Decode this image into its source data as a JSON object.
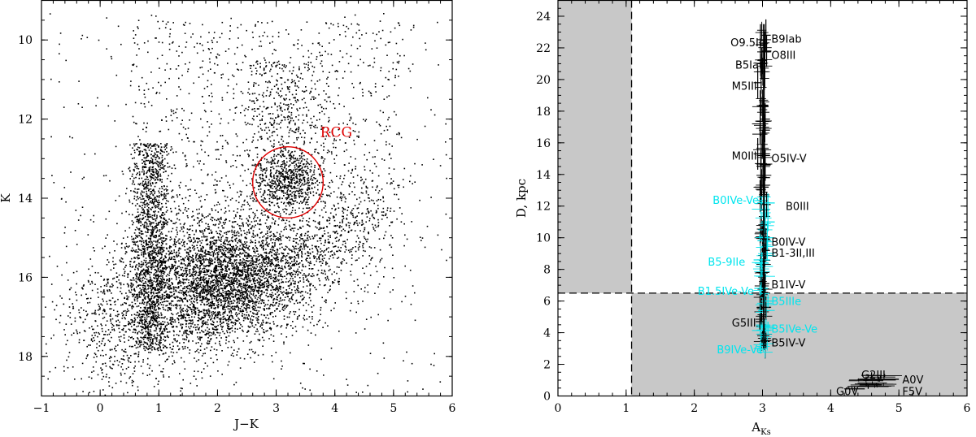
{
  "chart_data": [
    {
      "type": "scatter",
      "panel": "left",
      "xlabel": "J−K",
      "ylabel": "K",
      "xlim": [
        -1,
        6
      ],
      "ylim": [
        19,
        9
      ],
      "y_inverted": true,
      "xticks": [
        -1,
        0,
        1,
        2,
        3,
        4,
        5,
        6
      ],
      "yticks": [
        10,
        12,
        14,
        16,
        18
      ],
      "grid": false,
      "point_color": "#000000",
      "point_count_approx": 9000,
      "density_features": [
        {
          "x_range": [
            0.5,
            1.2
          ],
          "y_range": [
            12.5,
            17.5
          ],
          "description_level": "dense vertical band"
        },
        {
          "x_range": [
            1.2,
            3.5
          ],
          "y_range": [
            14.5,
            17.5
          ],
          "description_level": "dense main clump"
        },
        {
          "x_range": [
            2.8,
            3.6
          ],
          "y_range": [
            12.8,
            14.2
          ],
          "description_level": "red clump concentration"
        }
      ],
      "annotations": [
        {
          "text": "RCG",
          "color": "#e00000",
          "x": 3.75,
          "y": 12.45
        }
      ],
      "circle": {
        "cx": 3.2,
        "cy": 13.6,
        "rx": 0.6,
        "ry": 0.9,
        "color": "#e00000"
      }
    },
    {
      "type": "scatter",
      "panel": "right",
      "xlabel": "A",
      "xlabel_sub": "Ks",
      "ylabel": "D, kpc",
      "xlim": [
        0,
        6
      ],
      "ylim": [
        0,
        25
      ],
      "xticks": [
        0,
        1,
        2,
        3,
        4,
        5,
        6
      ],
      "yticks": [
        0,
        2,
        4,
        6,
        8,
        10,
        12,
        14,
        16,
        18,
        20,
        22,
        24
      ],
      "grid": false,
      "dashed_lines": {
        "x": 1.08,
        "y": 6.5
      },
      "shaded_regions": [
        {
          "x": [
            0,
            1.08
          ],
          "y": [
            6.5,
            25
          ],
          "color": "#c8c8c8"
        },
        {
          "x": [
            1.08,
            6
          ],
          "y": [
            0,
            6.5
          ],
          "color": "#c8c8c8"
        }
      ],
      "series": [
        {
          "name": "black",
          "color": "#000000",
          "points": [
            {
              "label": "O9.5Ib",
              "x": 2.97,
              "y": 22.2,
              "xerr": 0.07,
              "yerr": 1.3
            },
            {
              "label": "B9Iab",
              "x": 3.05,
              "y": 22.8,
              "xerr": 0.07,
              "yerr": 1.0
            },
            {
              "label": "O8III",
              "x": 3.06,
              "y": 21.8,
              "xerr": 0.07,
              "yerr": 1.0
            },
            {
              "label": "B5Iab",
              "x": 2.99,
              "y": 21.0,
              "xerr": 0.07,
              "yerr": 1.0
            },
            {
              "label": "M5III",
              "x": 2.93,
              "y": 19.8,
              "xerr": 0.06,
              "yerr": 1.0
            },
            {
              "label": "",
              "x": 3.02,
              "y": 18.3,
              "xerr": 0.07,
              "yerr": 1.0
            },
            {
              "label": "",
              "x": 3.04,
              "y": 17.5,
              "xerr": 0.07,
              "yerr": 1.0
            },
            {
              "label": "",
              "x": 3.03,
              "y": 16.8,
              "xerr": 0.08,
              "yerr": 1.0
            },
            {
              "label": "M0III",
              "x": 2.93,
              "y": 15.3,
              "xerr": 0.06,
              "yerr": 1.0
            },
            {
              "label": "O5IV-V",
              "x": 3.03,
              "y": 15.3,
              "xerr": 0.08,
              "yerr": 1.0
            },
            {
              "label": "",
              "x": 3.04,
              "y": 14.6,
              "xerr": 0.08,
              "yerr": 1.0
            },
            {
              "label": "",
              "x": 3.03,
              "y": 13.8,
              "xerr": 0.08,
              "yerr": 1.0
            },
            {
              "label": "B0III",
              "x": 3.06,
              "y": 12.1,
              "xerr": 0.06,
              "yerr": 0.8
            },
            {
              "label": "B0IV-V",
              "x": 3.05,
              "y": 9.9,
              "xerr": 0.06,
              "yerr": 0.7
            },
            {
              "label": "B1-3II,III",
              "x": 3.05,
              "y": 9.2,
              "xerr": 0.06,
              "yerr": 0.7
            },
            {
              "label": "B1IV-V",
              "x": 3.04,
              "y": 7.1,
              "xerr": 0.06,
              "yerr": 0.6
            },
            {
              "label": "",
              "x": 3.05,
              "y": 5.6,
              "xerr": 0.07,
              "yerr": 0.7
            },
            {
              "label": "G5III",
              "x": 2.96,
              "y": 4.7,
              "xerr": 0.06,
              "yerr": 0.5
            },
            {
              "label": "B5IV-V",
              "x": 3.05,
              "y": 3.5,
              "xerr": 0.08,
              "yerr": 0.5
            },
            {
              "label": "G2III",
              "x": 4.6,
              "y": 1.3,
              "xerr": 0.15,
              "yerr": 0.2
            },
            {
              "label": "A0V",
              "x": 4.7,
              "y": 1.05,
              "xerr": 0.3,
              "yerr": 0.15
            },
            {
              "label": "F5V",
              "x": 4.55,
              "y": 0.6,
              "xerr": 0.3,
              "yerr": 0.15
            },
            {
              "label": "G0V",
              "x": 4.35,
              "y": 0.45,
              "xerr": 0.15,
              "yerr": 0.15
            }
          ]
        },
        {
          "name": "cyan",
          "color": "#00e5ee",
          "points": [
            {
              "label": "B0IVe-Ve",
              "x": 3.08,
              "y": 12.2,
              "xerr": 0.1,
              "yerr": 0.6
            },
            {
              "label": "",
              "x": 3.08,
              "y": 11.0,
              "xerr": 0.1,
              "yerr": 0.6
            },
            {
              "label": "",
              "x": 3.07,
              "y": 10.0,
              "xerr": 0.1,
              "yerr": 0.5
            },
            {
              "label": "B5-9IIe",
              "x": 2.99,
              "y": 8.6,
              "xerr": 0.12,
              "yerr": 0.5
            },
            {
              "label": "B1.5IVe-Ve",
              "x": 2.98,
              "y": 6.8,
              "xerr": 0.1,
              "yerr": 0.4
            },
            {
              "label": "B5IIIe",
              "x": 3.08,
              "y": 6.0,
              "xerr": 0.1,
              "yerr": 0.4
            },
            {
              "label": "B5IVe-Ve",
              "x": 3.08,
              "y": 4.3,
              "xerr": 0.1,
              "yerr": 0.4
            },
            {
              "label": "B9IVe-Ve",
              "x": 2.97,
              "y": 3.0,
              "xerr": 0.1,
              "yerr": 0.3
            }
          ]
        }
      ],
      "labels": [
        {
          "text": "O9.5Ib",
          "x": 2.53,
          "y": 22.35,
          "color": "black"
        },
        {
          "text": "B9Iab",
          "x": 3.13,
          "y": 22.6,
          "color": "black"
        },
        {
          "text": "O8III",
          "x": 3.13,
          "y": 21.55,
          "color": "black"
        },
        {
          "text": "B5Iab",
          "x": 2.6,
          "y": 20.95,
          "color": "black"
        },
        {
          "text": "M5III",
          "x": 2.55,
          "y": 19.6,
          "color": "black"
        },
        {
          "text": "M0III",
          "x": 2.55,
          "y": 15.2,
          "color": "black"
        },
        {
          "text": "O5IV-V",
          "x": 3.13,
          "y": 15.05,
          "color": "black"
        },
        {
          "text": "B0IVe-Ve",
          "x": 2.27,
          "y": 12.4,
          "color": "cyan"
        },
        {
          "text": "B0III",
          "x": 3.34,
          "y": 12.0,
          "color": "black"
        },
        {
          "text": "B0IV-V",
          "x": 3.13,
          "y": 9.75,
          "color": "black"
        },
        {
          "text": "B1-3II,III",
          "x": 3.13,
          "y": 9.05,
          "color": "black"
        },
        {
          "text": "B5-9IIe",
          "x": 2.2,
          "y": 8.5,
          "color": "cyan"
        },
        {
          "text": "B1IV-V",
          "x": 3.13,
          "y": 7.05,
          "color": "black"
        },
        {
          "text": "B1.5IVe-Ve",
          "x": 2.05,
          "y": 6.65,
          "color": "cyan"
        },
        {
          "text": "B5IIIe",
          "x": 3.13,
          "y": 6.0,
          "color": "cyan"
        },
        {
          "text": "G5III",
          "x": 2.55,
          "y": 4.65,
          "color": "black"
        },
        {
          "text": "B5IVe-Ve",
          "x": 3.13,
          "y": 4.25,
          "color": "cyan"
        },
        {
          "text": "B5IV-V",
          "x": 3.13,
          "y": 3.4,
          "color": "black"
        },
        {
          "text": "B9IVe-Ve",
          "x": 2.33,
          "y": 2.95,
          "color": "cyan"
        },
        {
          "text": "G2III",
          "x": 4.45,
          "y": 1.35,
          "color": "black"
        },
        {
          "text": "A0V",
          "x": 5.05,
          "y": 1.05,
          "color": "black"
        },
        {
          "text": "F5V",
          "x": 5.05,
          "y": 0.3,
          "color": "black"
        },
        {
          "text": "G0V",
          "x": 4.08,
          "y": 0.3,
          "color": "black"
        }
      ]
    }
  ]
}
